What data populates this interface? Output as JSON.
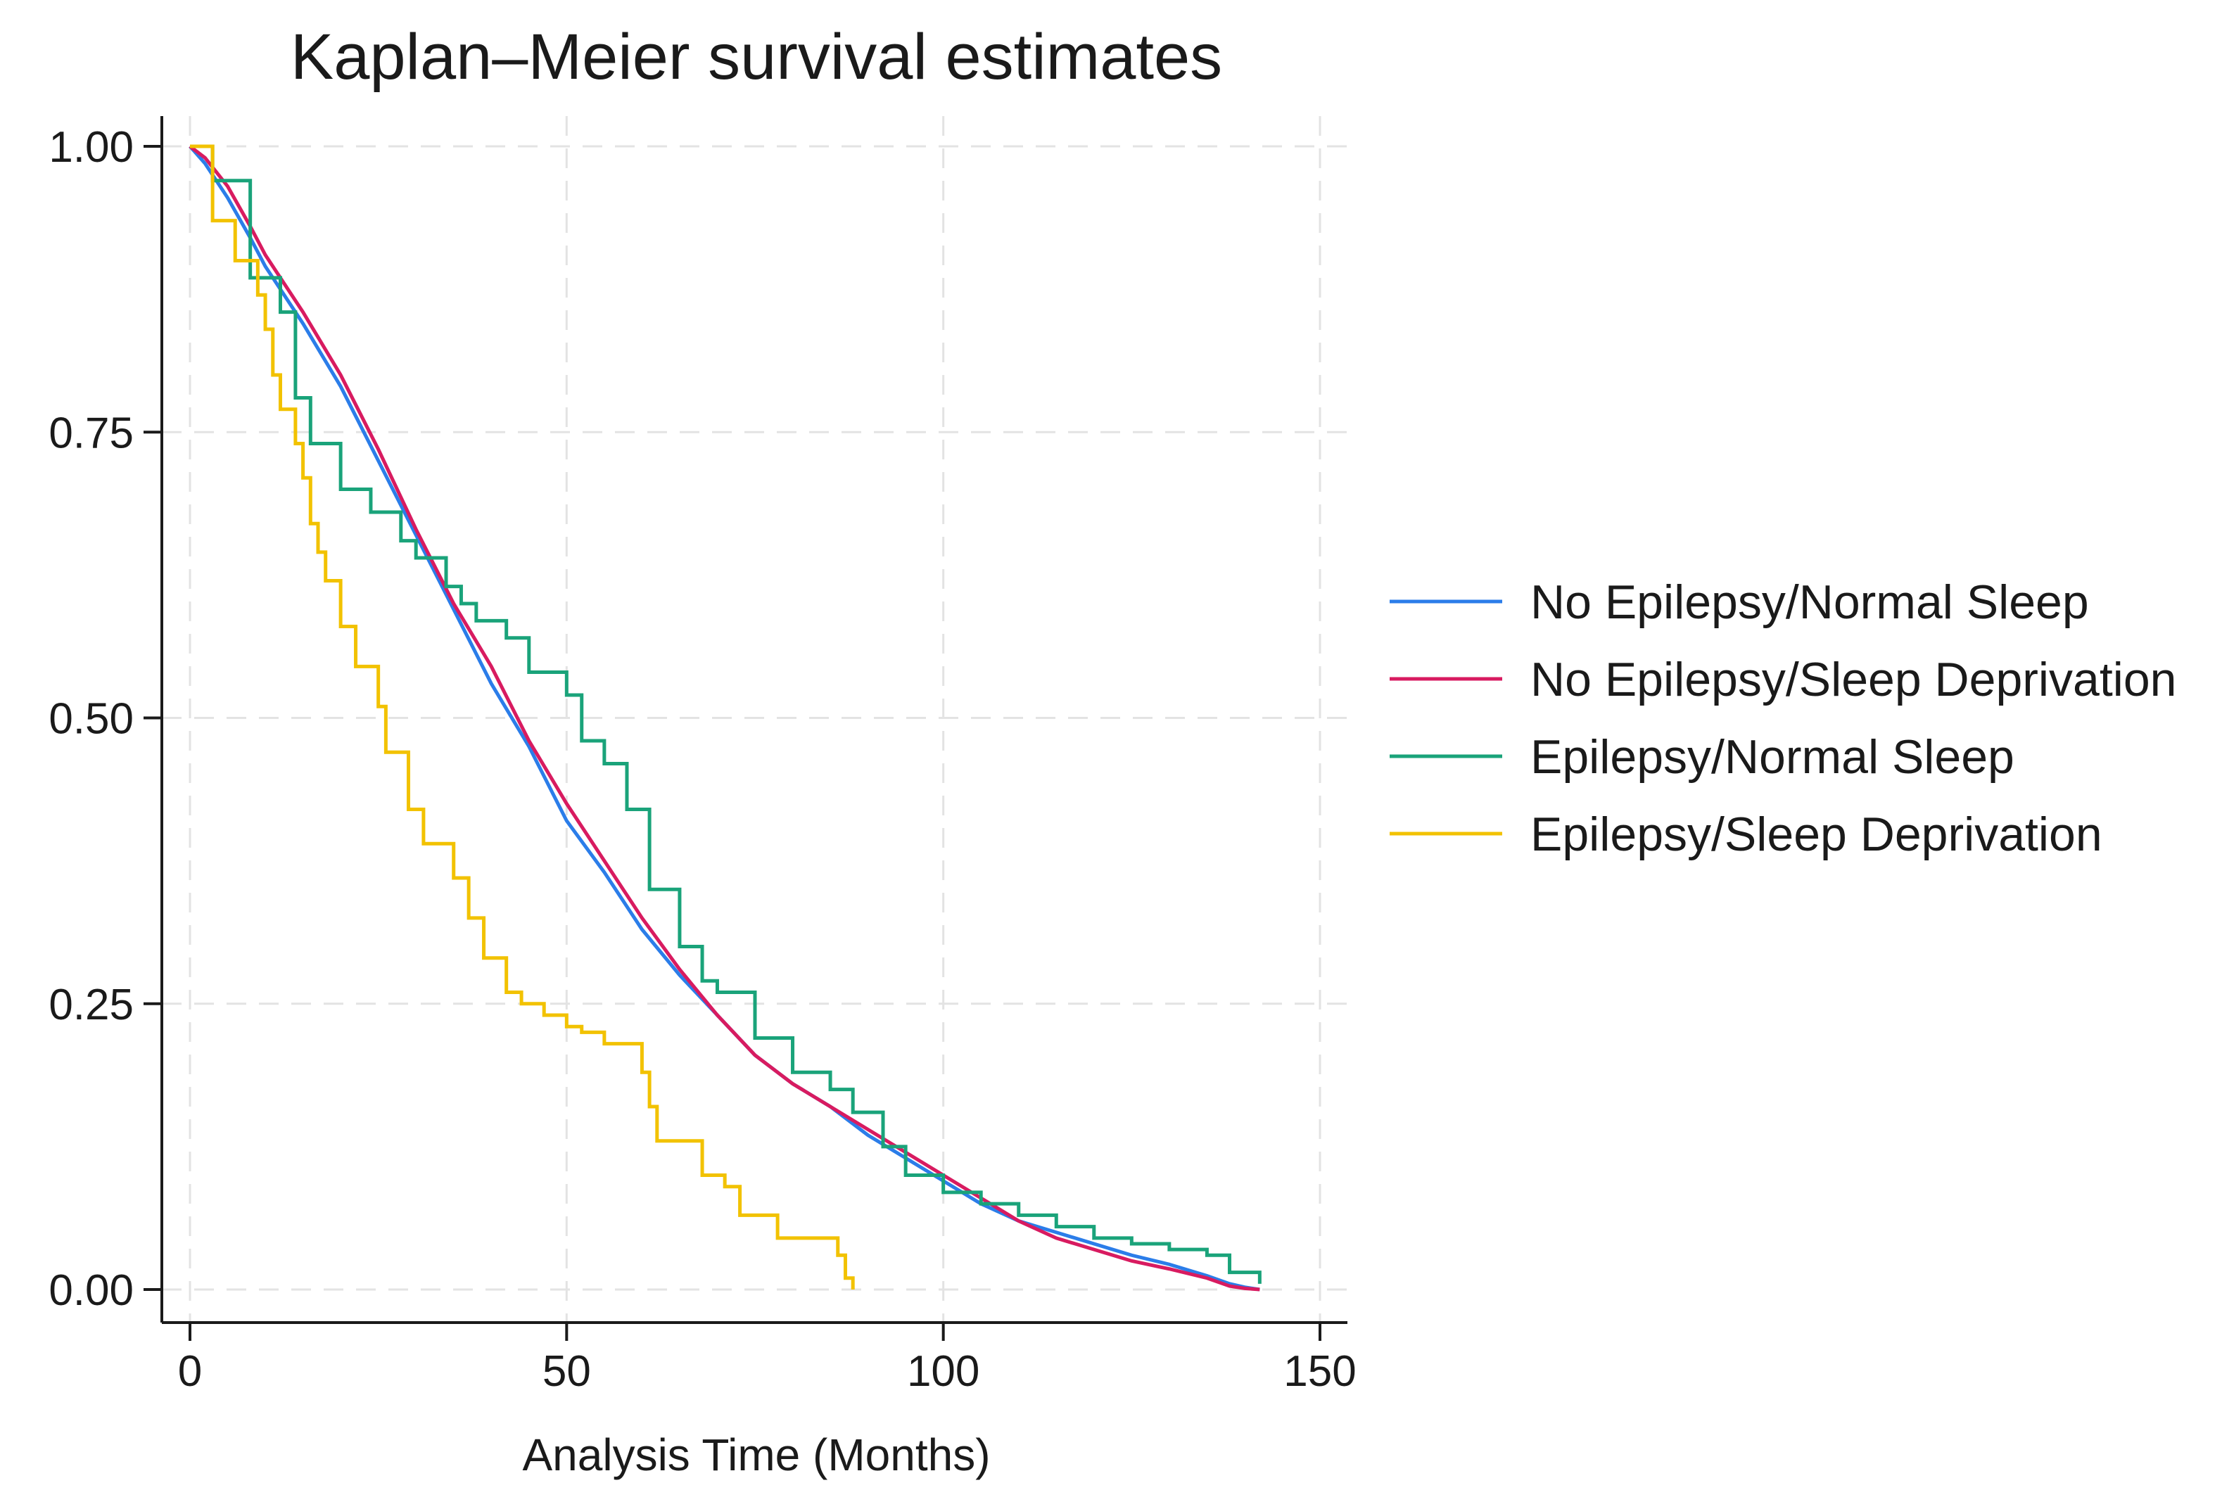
{
  "chart_data": {
    "type": "line",
    "title": "Kaplan–Meier survival estimates",
    "xlabel": "Analysis Time (Months)",
    "ylabel": "",
    "xlim": [
      0,
      150
    ],
    "ylim": [
      0,
      1
    ],
    "xticks": [
      0,
      50,
      100,
      150
    ],
    "xtick_labels": [
      "0",
      "50",
      "100",
      "150"
    ],
    "yticks": [
      0,
      0.25,
      0.5,
      0.75,
      1
    ],
    "ytick_labels": [
      "0.00",
      "0.25",
      "0.50",
      "0.75",
      "1.00"
    ],
    "grid": true,
    "legend_position": "right",
    "series": [
      {
        "name": "No Epilepsy/Normal Sleep",
        "color": "#2b7de9",
        "step": false,
        "x": [
          0,
          2,
          5,
          8,
          10,
          15,
          20,
          25,
          30,
          35,
          40,
          45,
          50,
          55,
          60,
          65,
          70,
          75,
          80,
          85,
          90,
          95,
          100,
          105,
          110,
          115,
          120,
          125,
          130,
          135,
          138,
          140,
          142
        ],
        "y": [
          1.0,
          0.985,
          0.955,
          0.92,
          0.895,
          0.845,
          0.79,
          0.725,
          0.66,
          0.595,
          0.53,
          0.475,
          0.41,
          0.365,
          0.315,
          0.275,
          0.24,
          0.205,
          0.18,
          0.16,
          0.135,
          0.115,
          0.095,
          0.075,
          0.06,
          0.05,
          0.04,
          0.03,
          0.022,
          0.012,
          0.005,
          0.002,
          0.0
        ]
      },
      {
        "name": "No Epilepsy/Sleep Deprivation",
        "color": "#d81b60",
        "step": false,
        "x": [
          0,
          2,
          5,
          8,
          10,
          15,
          20,
          25,
          30,
          35,
          40,
          45,
          50,
          55,
          60,
          65,
          70,
          75,
          80,
          85,
          90,
          95,
          100,
          105,
          110,
          115,
          120,
          125,
          130,
          135,
          138,
          140,
          142
        ],
        "y": [
          1.0,
          0.99,
          0.965,
          0.93,
          0.905,
          0.855,
          0.8,
          0.735,
          0.665,
          0.6,
          0.545,
          0.48,
          0.425,
          0.375,
          0.325,
          0.28,
          0.24,
          0.205,
          0.18,
          0.16,
          0.14,
          0.12,
          0.1,
          0.08,
          0.06,
          0.045,
          0.035,
          0.025,
          0.018,
          0.01,
          0.003,
          0.001,
          0.0
        ]
      },
      {
        "name": "Epilepsy/Normal Sleep",
        "color": "#1aa37a",
        "step": true,
        "x": [
          0,
          3,
          8,
          12,
          14,
          16,
          20,
          24,
          28,
          30,
          34,
          36,
          38,
          42,
          45,
          50,
          52,
          55,
          58,
          61,
          65,
          68,
          70,
          75,
          80,
          85,
          88,
          92,
          95,
          100,
          105,
          110,
          115,
          120,
          125,
          130,
          135,
          138,
          142
        ],
        "y": [
          1.0,
          0.97,
          0.885,
          0.855,
          0.78,
          0.74,
          0.7,
          0.68,
          0.655,
          0.64,
          0.615,
          0.6,
          0.585,
          0.57,
          0.54,
          0.52,
          0.48,
          0.46,
          0.42,
          0.35,
          0.3,
          0.27,
          0.26,
          0.22,
          0.19,
          0.175,
          0.155,
          0.125,
          0.1,
          0.085,
          0.075,
          0.065,
          0.055,
          0.045,
          0.04,
          0.035,
          0.03,
          0.015,
          0.005
        ]
      },
      {
        "name": "Epilepsy/Sleep Deprivation",
        "color": "#f2c200",
        "step": true,
        "x": [
          0,
          3,
          6,
          9,
          10,
          11,
          12,
          14,
          15,
          16,
          17,
          18,
          20,
          22,
          25,
          26,
          29,
          31,
          35,
          37,
          39,
          42,
          44,
          47,
          50,
          52,
          55,
          60,
          61,
          62,
          68,
          71,
          73,
          78,
          86,
          87,
          88
        ],
        "y": [
          1.0,
          0.935,
          0.9,
          0.87,
          0.84,
          0.8,
          0.77,
          0.74,
          0.71,
          0.67,
          0.645,
          0.62,
          0.58,
          0.545,
          0.51,
          0.47,
          0.42,
          0.39,
          0.36,
          0.325,
          0.29,
          0.26,
          0.25,
          0.24,
          0.23,
          0.225,
          0.215,
          0.19,
          0.16,
          0.13,
          0.1,
          0.09,
          0.065,
          0.045,
          0.03,
          0.01,
          0.0
        ]
      }
    ]
  }
}
